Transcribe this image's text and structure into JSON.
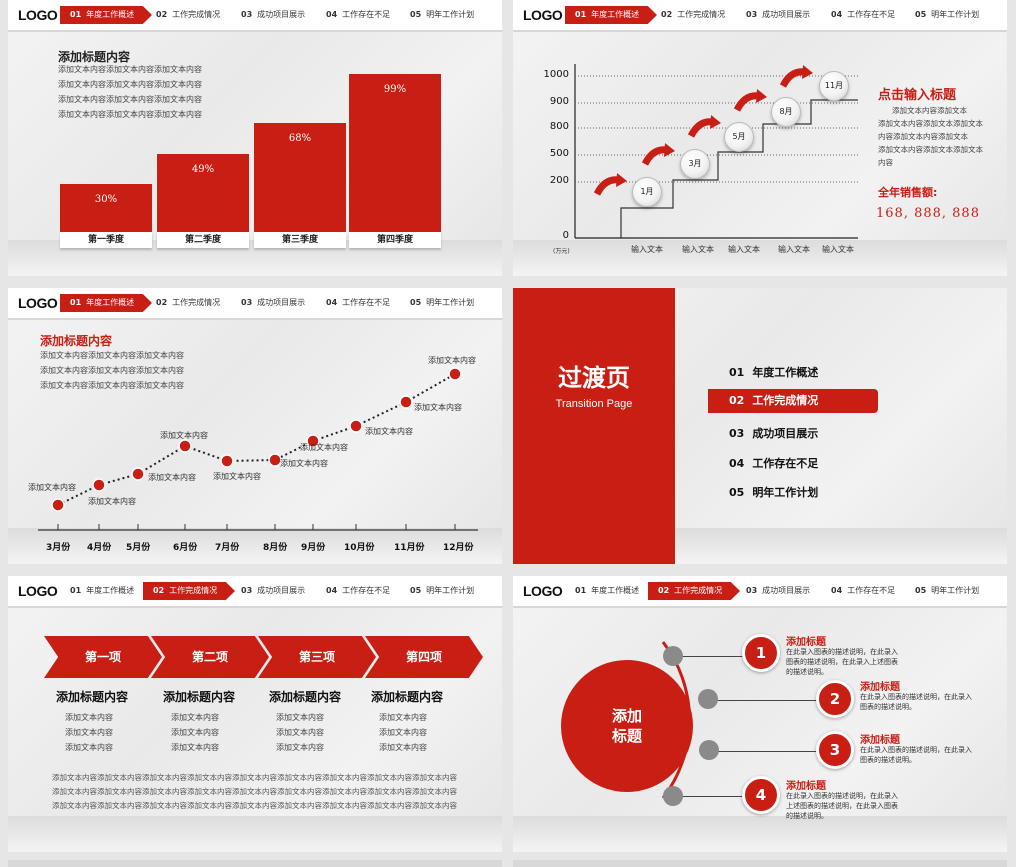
{
  "logo": "LOGO",
  "nav": [
    {
      "num": "01",
      "label": "年度工作概述"
    },
    {
      "num": "02",
      "label": "工作完成情况"
    },
    {
      "num": "03",
      "label": "成功项目展示"
    },
    {
      "num": "04",
      "label": "工作存在不足"
    },
    {
      "num": "05",
      "label": "明年工作计划"
    }
  ],
  "slide1": {
    "title": "添加标题内容",
    "lines": [
      "添加文本内容添加文本内容添加文本内容",
      "添加文本内容添加文本内容添加文本内容",
      "添加文本内容添加文本内容添加文本内容",
      "添加文本内容添加文本内容添加文本内容"
    ],
    "chart_data": {
      "type": "bar",
      "categories": [
        "第一季度",
        "第二季度",
        "第三季度",
        "第四季度"
      ],
      "values": [
        30,
        49,
        68,
        99
      ],
      "labels": [
        "30%",
        "49%",
        "68%",
        "99%"
      ],
      "color": "#c81e14"
    }
  },
  "slide2": {
    "chart_data": {
      "type": "line",
      "y_ticks": [
        "1000",
        "900",
        "800",
        "500",
        "200",
        "0"
      ],
      "y_unit": "(万元)",
      "x_labels": [
        "输入文本",
        "输入文本",
        "输入文本",
        "输入文本",
        "输入文本"
      ],
      "steps": [
        "1月",
        "3月",
        "5月",
        "8月",
        "11月"
      ]
    },
    "side_title": "点击输入标题",
    "side_lines": [
      "添加文本内容添加文本",
      "添加文本内容添加文本添加文本",
      "内容添加文本内容添加文本",
      "添加文本内容添加文本添加文本",
      "内容"
    ],
    "sales_label": "全年销售额:",
    "sales_value": "168, 888, 888"
  },
  "slide3": {
    "title": "添加标题内容",
    "lines": [
      "添加文本内容添加文本内容添加文本内容",
      "添加文本内容添加文本内容添加文本内容",
      "添加文本内容添加文本内容添加文本内容"
    ],
    "chart_data": {
      "type": "line",
      "categories": [
        "3月份",
        "4月份",
        "5月份",
        "6月份",
        "7月份",
        "8月份",
        "9月份",
        "10月份",
        "11月份",
        "12月份"
      ],
      "point_labels": [
        "添加文本内容",
        "添加文本内容",
        "添加文本内容",
        "添加文本内容",
        "添加文本内容",
        "添加文本内容",
        "添加文本内容",
        "添加文本内容",
        "添加文本内容",
        "添加文本内容"
      ]
    }
  },
  "slide4": {
    "title": "过渡页",
    "subtitle": "Transition Page",
    "items": [
      {
        "num": "01",
        "label": "年度工作概述"
      },
      {
        "num": "02",
        "label": "工作完成情况"
      },
      {
        "num": "03",
        "label": "成功项目展示"
      },
      {
        "num": "04",
        "label": "工作存在不足"
      },
      {
        "num": "05",
        "label": "明年工作计划"
      }
    ]
  },
  "slide5": {
    "chevrons": [
      "第一项",
      "第二项",
      "第三项",
      "第四项"
    ],
    "col_titles": [
      "添加标题内容",
      "添加标题内容",
      "添加标题内容",
      "添加标题内容"
    ],
    "col_item": "添加文本内容",
    "para": "添加文本内容添加文本内容添加文本内容添加文本内容添加文本内容添加文本内容添加文本内容添加文本内容添加文本内容"
  },
  "slide6": {
    "center": [
      "添加",
      "标题"
    ],
    "items": [
      {
        "num": "1",
        "title": "添加标题",
        "desc": "在此录入图表的描述说明，在此录入图表的描述说明，在此录入上述图表的描述说明。"
      },
      {
        "num": "2",
        "title": "添加标题",
        "desc": "在此录入图表的描述说明，在此录入图表的描述说明。"
      },
      {
        "num": "3",
        "title": "添加标题",
        "desc": "在此录入图表的描述说明，在此录入图表的描述说明。"
      },
      {
        "num": "4",
        "title": "添加标题",
        "desc": "在此录入图表的描述说明，在此录入上述图表的描述说明，在此录入图表的描述说明。"
      }
    ]
  }
}
